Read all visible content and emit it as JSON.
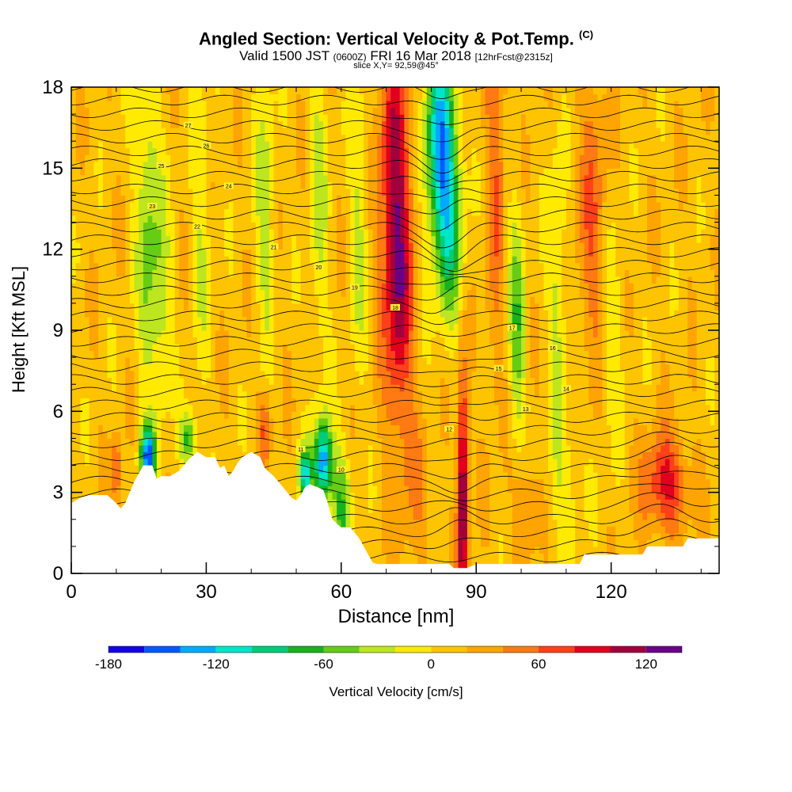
{
  "title": "Angled Section: Vertical Velocity & Pot.Temp.",
  "title_unit": "(C)",
  "subtitle_main": "Valid 1500 JST",
  "subtitle_utc": "(0600Z)",
  "subtitle_date": "FRI 16 Mar 2018",
  "subtitle_fcst": "[12hrFcst@2315z]",
  "slice_text": "slice X,Y= 92,59@45°",
  "chart_data": {
    "type": "heatmap",
    "xlabel": "Distance [nm]",
    "ylabel": "Height [Kft MSL]",
    "xlim": [
      0,
      144
    ],
    "ylim": [
      0,
      18
    ],
    "x_ticks": [
      "0",
      "30",
      "60",
      "90",
      "120"
    ],
    "y_ticks": [
      "0",
      "3",
      "6",
      "9",
      "12",
      "15",
      "18"
    ],
    "colorbar": {
      "label": "Vertical Velocity [cm/s]",
      "range": [
        -180,
        140
      ],
      "step": 20,
      "tick_labels": [
        "-180",
        "-120",
        "-60",
        "0",
        "60",
        "120"
      ],
      "colors": [
        "#1400e6",
        "#0058ff",
        "#00aaff",
        "#00e5c8",
        "#00cc7a",
        "#18b21e",
        "#66cc14",
        "#bde61e",
        "#ffea00",
        "#ffc400",
        "#ffa400",
        "#ff7a12",
        "#ff4018",
        "#e0001e",
        "#a2003c",
        "#6a0089"
      ]
    },
    "terrain_top_kft": [
      [
        0,
        2.6
      ],
      [
        2,
        2.8
      ],
      [
        4,
        2.9
      ],
      [
        8,
        2.9
      ],
      [
        10,
        2.6
      ],
      [
        11,
        2.4
      ],
      [
        12,
        2.6
      ],
      [
        14,
        3.4
      ],
      [
        16,
        4.0
      ],
      [
        18,
        4.0
      ],
      [
        19,
        3.5
      ],
      [
        20,
        3.6
      ],
      [
        22,
        3.6
      ],
      [
        24,
        3.8
      ],
      [
        26,
        4.2
      ],
      [
        28,
        4.5
      ],
      [
        30,
        4.3
      ],
      [
        32,
        4.3
      ],
      [
        33,
        3.9
      ],
      [
        34,
        4.0
      ],
      [
        35,
        3.6
      ],
      [
        36,
        3.8
      ],
      [
        37,
        4.1
      ],
      [
        38,
        4.3
      ],
      [
        40,
        4.5
      ],
      [
        42,
        4.3
      ],
      [
        43,
        3.9
      ],
      [
        45,
        3.6
      ],
      [
        47,
        3.2
      ],
      [
        48,
        3.0
      ],
      [
        49,
        2.8
      ],
      [
        50,
        2.7
      ],
      [
        51,
        2.9
      ],
      [
        52,
        3.2
      ],
      [
        53,
        3.3
      ],
      [
        56,
        3.1
      ],
      [
        57,
        2.6
      ],
      [
        58,
        2.0
      ],
      [
        60,
        1.7
      ],
      [
        62,
        1.7
      ],
      [
        63,
        1.5
      ],
      [
        64,
        1.3
      ],
      [
        65,
        1.0
      ],
      [
        66,
        0.7
      ],
      [
        67,
        0.4
      ],
      [
        68,
        0.35
      ],
      [
        84,
        0.35
      ],
      [
        85,
        0.2
      ],
      [
        88,
        0.2
      ],
      [
        90,
        0.35
      ],
      [
        113,
        0.35
      ],
      [
        114,
        0.7
      ],
      [
        127,
        0.7
      ],
      [
        128,
        1.0
      ],
      [
        136,
        1.0
      ],
      [
        137,
        1.3
      ],
      [
        144,
        1.3
      ]
    ],
    "theta_label_values": [
      "27",
      "26",
      "25",
      "24",
      "23",
      "22",
      "21",
      "20",
      "19",
      "18",
      "17",
      "16",
      "15",
      "14",
      "13",
      "12",
      "11",
      "10",
      "9",
      "8",
      "7"
    ],
    "grid": false
  }
}
